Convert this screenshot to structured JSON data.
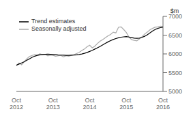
{
  "chart_data": {
    "type": "line",
    "title": "",
    "ylabel": "$m",
    "ylim": [
      5000,
      7000
    ],
    "yticks": [
      5000,
      5500,
      6000,
      6500,
      7000
    ],
    "grid": false,
    "legend": "upper left",
    "categories": [
      "Oct\n2012",
      null,
      null,
      null,
      null,
      null,
      null,
      null,
      null,
      null,
      null,
      null,
      null,
      null,
      "Oct\n2013",
      null,
      null,
      null,
      null,
      null,
      null,
      null,
      null,
      null,
      null,
      null,
      null,
      null,
      "Oct\n2014",
      null,
      null,
      null,
      null,
      null,
      null,
      null,
      null,
      null,
      null,
      null,
      null,
      null,
      "Oct\n2015",
      null,
      null,
      null,
      null,
      null,
      null,
      null,
      null,
      null,
      null,
      null,
      null,
      null,
      "Oct\n2016"
    ],
    "series": [
      {
        "name": "Trend estimates",
        "color": "#000000",
        "values": [
          5700,
          5730,
          5760,
          5790,
          5830,
          5870,
          5910,
          5940,
          5960,
          5975,
          5985,
          5990,
          5992,
          5990,
          5985,
          5978,
          5972,
          5968,
          5965,
          5963,
          5963,
          5965,
          5968,
          5975,
          5985,
          5998,
          6015,
          6038,
          6065,
          6095,
          6130,
          6165,
          6200,
          6240,
          6280,
          6320,
          6355,
          6385,
          6410,
          6430,
          6445,
          6455,
          6460,
          6450,
          6435,
          6420,
          6415,
          6420,
          6440,
          6470,
          6510,
          6560,
          6610,
          6650,
          6680,
          6700,
          6710
        ]
      },
      {
        "name": "Seasonally adjusted",
        "color": "#aaaaaa",
        "values": [
          5680,
          5760,
          5710,
          5790,
          5870,
          5930,
          5960,
          5980,
          5970,
          6000,
          5980,
          5990,
          5950,
          5970,
          5960,
          5940,
          5950,
          5960,
          5920,
          5950,
          5940,
          5960,
          5980,
          6010,
          6040,
          6090,
          6130,
          6190,
          6230,
          6160,
          6210,
          6280,
          6340,
          6380,
          6430,
          6480,
          6520,
          6580,
          6560,
          6710,
          6720,
          6650,
          6570,
          6450,
          6380,
          6360,
          6350,
          6400,
          6460,
          6530,
          6580,
          6640,
          6680,
          6710,
          6720,
          6740,
          6730
        ]
      }
    ]
  }
}
